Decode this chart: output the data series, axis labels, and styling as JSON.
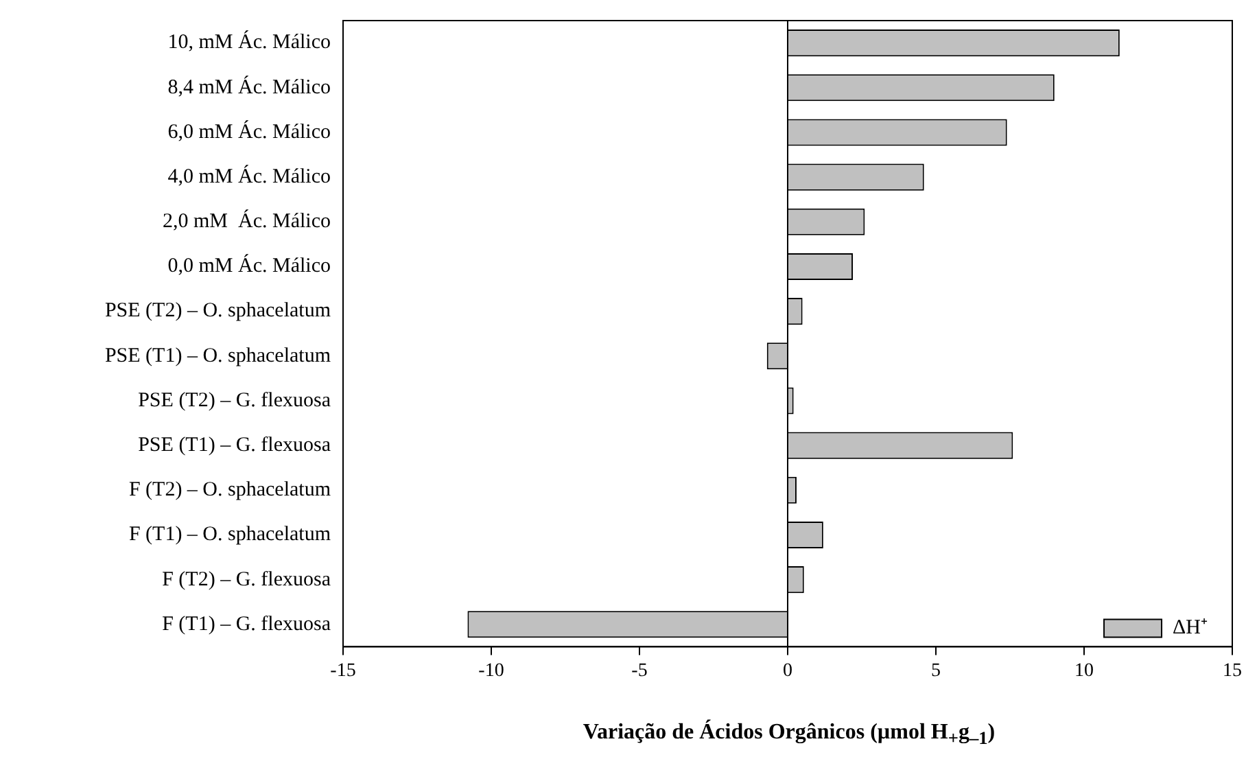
{
  "chart_data": {
    "type": "bar",
    "orientation": "horizontal",
    "xlabel": "Variação de Ácidos Orgânicos (µmol H$_{+}$g$_{–1}$)",
    "categories": [
      "10, mM Ác. Málico",
      "8,4 mM Ác. Málico",
      "6,0 mM Ác. Málico",
      "4,0 mM Ác. Málico",
      "2,0 mM  Ác. Málico",
      "0,0 mM Ác. Málico",
      "PSE (T2) – O. sphacelatum",
      "PSE (T1) – O. sphacelatum",
      "PSE (T2) – G. flexuosa",
      "PSE (T1) – G. flexuosa",
      "F (T2) – O. sphacelatum",
      "F (T1) – O. sphacelatum",
      "F (T2) – G. flexuosa",
      "F (T1) – G. flexuosa"
    ],
    "series": [
      {
        "name": "ΔH⁺",
        "color": "#c0c0c0",
        "values": [
          11.2,
          9.0,
          7.4,
          4.6,
          2.6,
          2.2,
          0.5,
          -0.7,
          0.2,
          7.6,
          0.3,
          1.2,
          0.55,
          -10.8
        ]
      }
    ],
    "xlim": [
      -15,
      15
    ],
    "xticks": [
      -15,
      -10,
      -5,
      0,
      5,
      10,
      15
    ],
    "legend": "bottom right"
  }
}
